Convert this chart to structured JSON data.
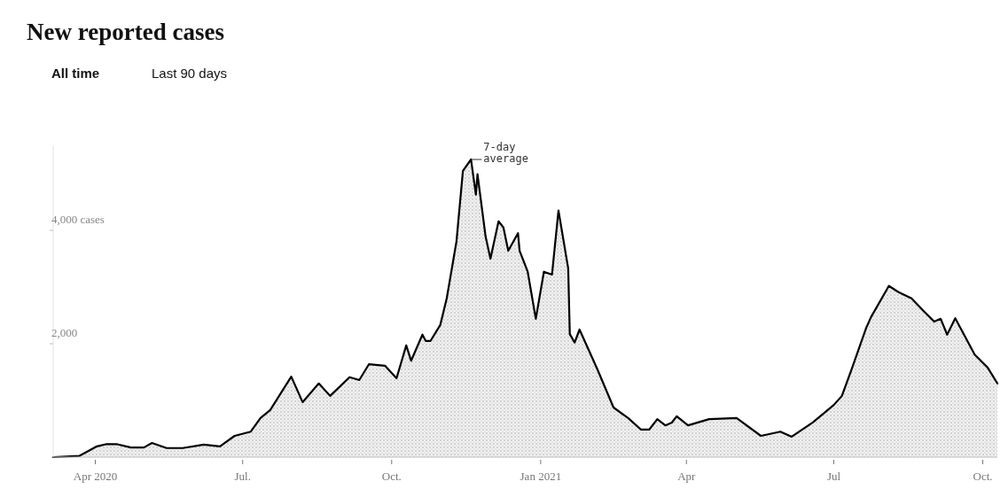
{
  "chart_data": {
    "type": "area",
    "title": "New reported cases",
    "annotations": [
      "All time",
      "Last 90 days",
      {
        "text": "7-day average",
        "x": "2020-11-19",
        "y": 5250
      }
    ],
    "x": [
      "2020-03-06",
      "2020-03-22",
      "2020-04-02",
      "2020-04-08",
      "2020-04-14",
      "2020-04-23",
      "2020-05-01",
      "2020-05-06",
      "2020-05-15",
      "2020-05-25",
      "2020-06-07",
      "2020-06-17",
      "2020-06-26",
      "2020-07-06",
      "2020-07-12",
      "2020-07-18",
      "2020-07-31",
      "2020-08-07",
      "2020-08-17",
      "2020-08-24",
      "2020-09-05",
      "2020-09-11",
      "2020-09-17",
      "2020-09-27",
      "2020-10-04",
      "2020-10-10",
      "2020-10-13",
      "2020-10-20",
      "2020-10-22",
      "2020-10-25",
      "2020-10-31",
      "2020-11-04",
      "2020-11-10",
      "2020-11-14",
      "2020-11-19",
      "2020-11-22",
      "2020-11-23",
      "2020-11-28",
      "2020-12-01",
      "2020-12-06",
      "2020-12-09",
      "2020-12-12",
      "2020-12-18",
      "2020-12-19",
      "2020-12-24",
      "2020-12-29",
      "2021-01-03",
      "2021-01-08",
      "2021-01-12",
      "2021-01-18",
      "2021-01-19",
      "2021-01-22",
      "2021-01-25",
      "2021-02-05",
      "2021-02-15",
      "2021-02-24",
      "2021-03-04",
      "2021-03-09",
      "2021-03-14",
      "2021-03-19",
      "2021-03-23",
      "2021-03-26",
      "2021-04-02",
      "2021-04-15",
      "2021-05-02",
      "2021-05-17",
      "2021-05-29",
      "2021-06-05",
      "2021-06-18",
      "2021-07-01",
      "2021-07-06",
      "2021-07-12",
      "2021-07-21",
      "2021-07-24",
      "2021-08-04",
      "2021-08-10",
      "2021-08-18",
      "2021-08-25",
      "2021-09-01",
      "2021-09-05",
      "2021-09-09",
      "2021-09-14",
      "2021-09-26",
      "2021-10-04",
      "2021-10-10"
    ],
    "series": [
      {
        "color": "#000000",
        "values": [
          0,
          20,
          190,
          230,
          230,
          170,
          170,
          250,
          160,
          160,
          220,
          190,
          375,
          450,
          690,
          830,
          1420,
          970,
          1300,
          1080,
          1410,
          1360,
          1640,
          1610,
          1390,
          1970,
          1700,
          2160,
          2050,
          2050,
          2330,
          2800,
          3800,
          5050,
          5250,
          4630,
          4990,
          3890,
          3500,
          4160,
          4050,
          3640,
          3950,
          3640,
          3270,
          2440,
          3270,
          3220,
          4350,
          3330,
          2170,
          2020,
          2250,
          1550,
          875,
          690,
          485,
          485,
          670,
          560,
          610,
          720,
          560,
          670,
          690,
          375,
          450,
          360,
          610,
          920,
          1080,
          1550,
          2280,
          2470,
          3020,
          2910,
          2800,
          2590,
          2390,
          2440,
          2160,
          2450,
          1810,
          1580,
          1300
        ]
      }
    ],
    "xlim": [
      "2020-03-06",
      "2021-10-10"
    ],
    "xticks": [
      {
        "value": "2020-04-01",
        "label": "Apr 2020"
      },
      {
        "value": "2020-07-01",
        "label": "Jul."
      },
      {
        "value": "2020-10-01",
        "label": "Oct."
      },
      {
        "value": "2021-01-01",
        "label": "Jan 2021"
      },
      {
        "value": "2021-04-01",
        "label": "Apr"
      },
      {
        "value": "2021-07-01",
        "label": "Jul"
      },
      {
        "value": "2021-10-01",
        "label": "Oct."
      }
    ],
    "ylim": [
      0,
      5500
    ],
    "yticks": [
      {
        "value": 2000,
        "label": "2,000"
      },
      {
        "value": 4000,
        "label": "4,000 cases"
      }
    ],
    "grid": false
  }
}
